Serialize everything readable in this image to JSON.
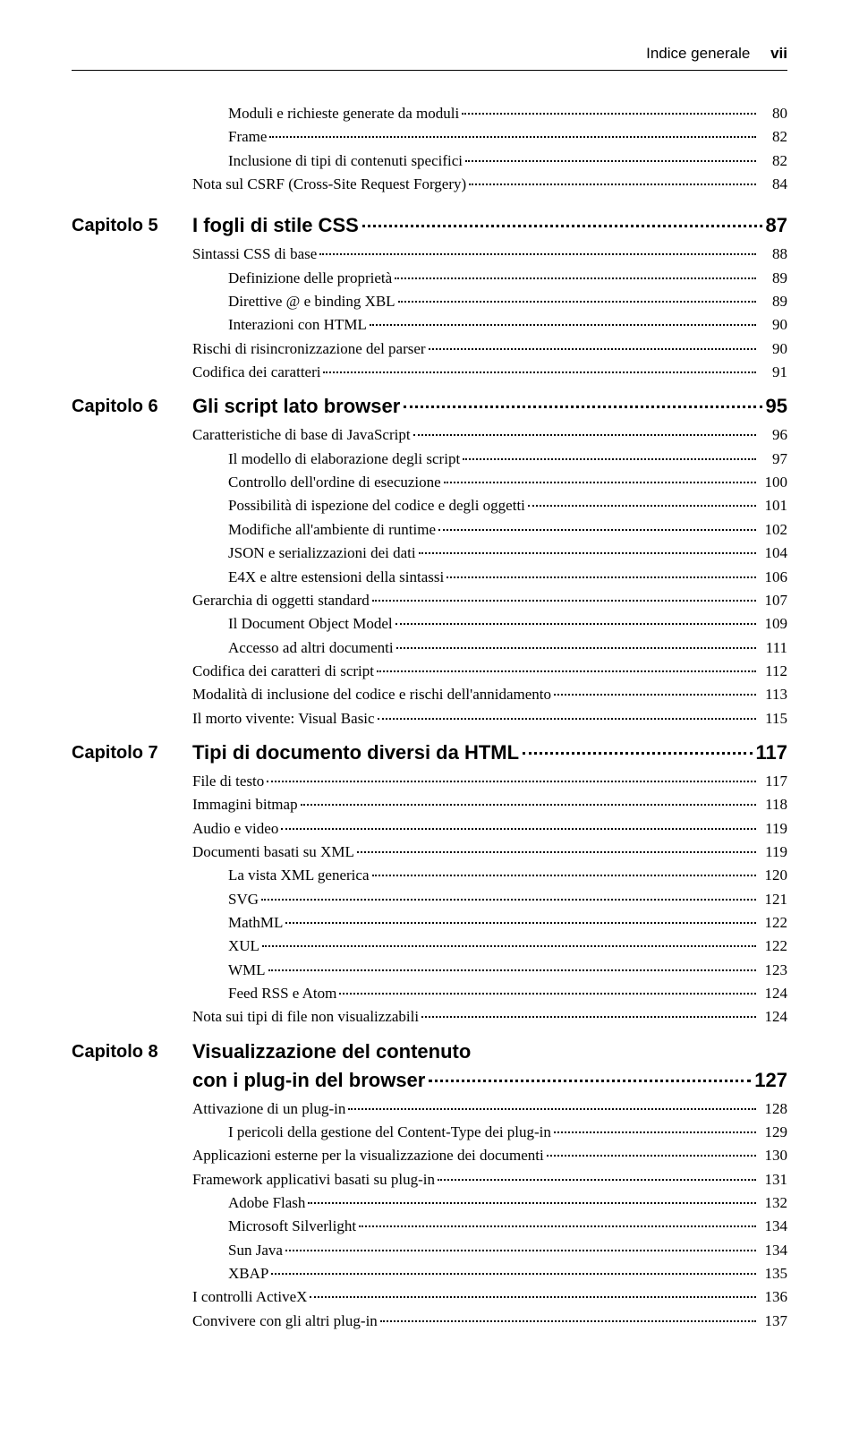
{
  "header": {
    "title": "Indice generale",
    "page": "vii"
  },
  "intro_items": [
    {
      "title": "Moduli e richieste generate da moduli",
      "page": "80",
      "indent": 1
    },
    {
      "title": "Frame",
      "page": "82",
      "indent": 1
    },
    {
      "title": "Inclusione di tipi di contenuti specifici",
      "page": "82",
      "indent": 1
    },
    {
      "title": "Nota sul CSRF (Cross-Site Request Forgery)",
      "page": "84",
      "indent": 0
    }
  ],
  "chapters": [
    {
      "label": "Capitolo 5",
      "title": "I fogli di stile CSS",
      "page": "87",
      "items": [
        {
          "title": "Sintassi CSS di base",
          "page": "88",
          "indent": 0
        },
        {
          "title": "Definizione delle proprietà",
          "page": "89",
          "indent": 1
        },
        {
          "title": "Direttive @ e binding XBL",
          "page": "89",
          "indent": 1
        },
        {
          "title": "Interazioni con HTML",
          "page": "90",
          "indent": 1
        },
        {
          "title": "Rischi di risincronizzazione del parser",
          "page": "90",
          "indent": 0
        },
        {
          "title": "Codifica dei caratteri",
          "page": "91",
          "indent": 0
        }
      ]
    },
    {
      "label": "Capitolo 6",
      "title": "Gli script lato browser",
      "page": "95",
      "items": [
        {
          "title": "Caratteristiche di base di JavaScript",
          "page": "96",
          "indent": 0
        },
        {
          "title": "Il modello di elaborazione degli script",
          "page": "97",
          "indent": 1
        },
        {
          "title": "Controllo dell'ordine di esecuzione",
          "page": "100",
          "indent": 1
        },
        {
          "title": "Possibilità di ispezione del codice e degli oggetti",
          "page": "101",
          "indent": 1
        },
        {
          "title": "Modifiche all'ambiente di runtime",
          "page": "102",
          "indent": 1
        },
        {
          "title": "JSON e serializzazioni dei dati",
          "page": "104",
          "indent": 1
        },
        {
          "title": "E4X e altre estensioni della sintassi",
          "page": "106",
          "indent": 1
        },
        {
          "title": "Gerarchia di oggetti standard",
          "page": "107",
          "indent": 0
        },
        {
          "title": "Il Document Object Model",
          "page": "109",
          "indent": 1
        },
        {
          "title": "Accesso ad altri documenti",
          "page": "111",
          "indent": 1
        },
        {
          "title": "Codifica dei caratteri di script",
          "page": "112",
          "indent": 0
        },
        {
          "title": "Modalità di inclusione del codice e rischi dell'annidamento",
          "page": "113",
          "indent": 0
        },
        {
          "title": "Il morto vivente: Visual Basic",
          "page": "115",
          "indent": 0
        }
      ]
    },
    {
      "label": "Capitolo 7",
      "title": "Tipi di documento diversi da HTML",
      "page": "117",
      "items": [
        {
          "title": "File di testo",
          "page": "117",
          "indent": 0
        },
        {
          "title": "Immagini bitmap",
          "page": "118",
          "indent": 0
        },
        {
          "title": "Audio e video",
          "page": "119",
          "indent": 0
        },
        {
          "title": "Documenti basati su XML",
          "page": "119",
          "indent": 0
        },
        {
          "title": "La vista XML generica",
          "page": "120",
          "indent": 1
        },
        {
          "title": "SVG",
          "page": "121",
          "indent": 1
        },
        {
          "title": "MathML",
          "page": "122",
          "indent": 1
        },
        {
          "title": "XUL",
          "page": "122",
          "indent": 1
        },
        {
          "title": "WML",
          "page": "123",
          "indent": 1
        },
        {
          "title": "Feed RSS e Atom",
          "page": "124",
          "indent": 1
        },
        {
          "title": "Nota sui tipi di file non visualizzabili",
          "page": "124",
          "indent": 0
        }
      ]
    },
    {
      "label": "Capitolo 8",
      "title": "Visualizzazione del contenuto\ncon i plug-in del browser",
      "page": "127",
      "items": [
        {
          "title": "Attivazione di un plug-in",
          "page": "128",
          "indent": 0
        },
        {
          "title": "I pericoli della gestione del Content-Type dei plug-in",
          "page": "129",
          "indent": 1
        },
        {
          "title": "Applicazioni esterne per la visualizzazione dei documenti",
          "page": "130",
          "indent": 0
        },
        {
          "title": "Framework applicativi basati su plug-in",
          "page": "131",
          "indent": 0
        },
        {
          "title": "Adobe Flash",
          "page": "132",
          "indent": 1
        },
        {
          "title": "Microsoft Silverlight",
          "page": "134",
          "indent": 1
        },
        {
          "title": "Sun Java",
          "page": "134",
          "indent": 1
        },
        {
          "title": "XBAP",
          "page": "135",
          "indent": 1
        },
        {
          "title": "I controlli ActiveX",
          "page": "136",
          "indent": 0
        },
        {
          "title": "Convivere con gli altri plug-in",
          "page": "137",
          "indent": 0
        }
      ]
    }
  ]
}
